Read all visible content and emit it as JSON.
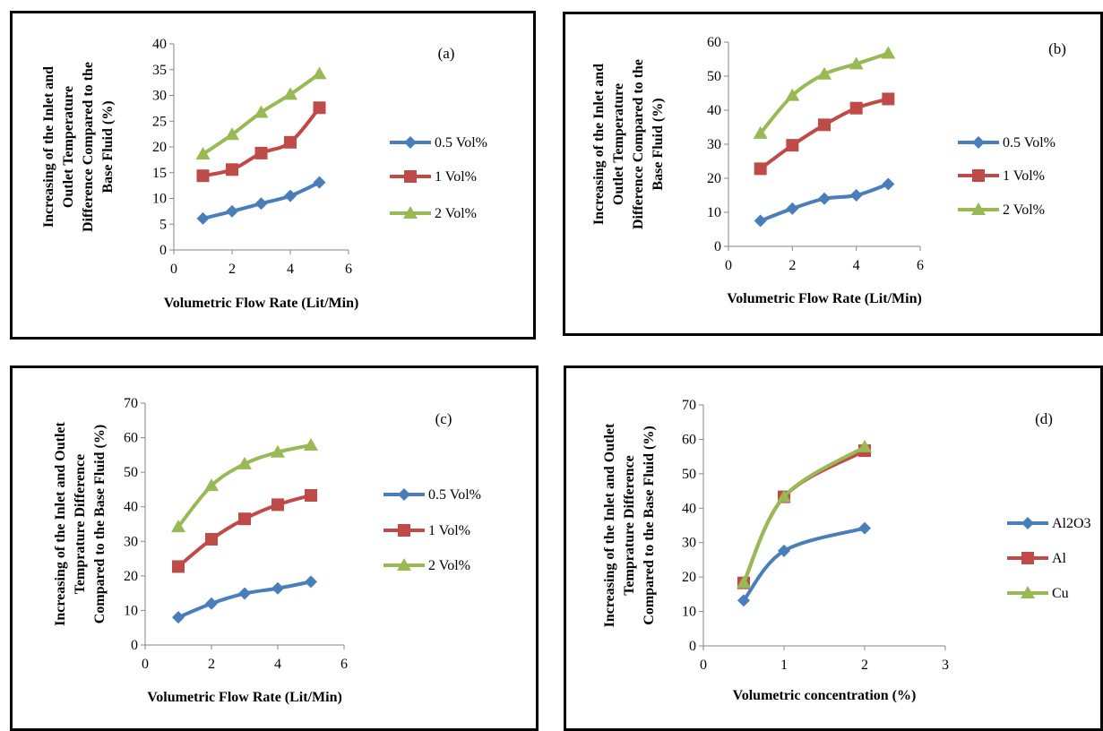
{
  "chart_data": [
    {
      "type": "line",
      "annotation": "(a)",
      "xlabel": "Volumetric Flow Rate (Lit/Min)",
      "ylabel": [
        "Increasing of the Inlet and",
        "Outlet Temperature",
        "Difference Compared to the",
        "Base Fluid (%)"
      ],
      "xlim": [
        0,
        6
      ],
      "xticks": [
        0,
        2,
        4,
        6
      ],
      "ylim": [
        0,
        40
      ],
      "yticks": [
        0,
        5,
        10,
        15,
        20,
        25,
        30,
        35,
        40
      ],
      "grid": false,
      "legend": "right",
      "series": [
        {
          "name": "0.5 Vol%",
          "color": "#4a7ebb",
          "marker": "diamond",
          "x": [
            1,
            2,
            3,
            4,
            5
          ],
          "y": [
            6.1,
            7.5,
            9.0,
            10.5,
            13.1
          ]
        },
        {
          "name": "1 Vol%",
          "color": "#be4b48",
          "marker": "square",
          "x": [
            1,
            2,
            3,
            4,
            5
          ],
          "y": [
            14.4,
            15.6,
            18.8,
            20.9,
            27.6
          ]
        },
        {
          "name": "2 Vol%",
          "color": "#98b954",
          "marker": "triangle",
          "x": [
            1,
            2,
            3,
            4,
            5
          ],
          "y": [
            18.6,
            22.4,
            26.7,
            30.2,
            34.2
          ]
        }
      ]
    },
    {
      "type": "line",
      "annotation": "(b)",
      "xlabel": "Volumetric Flow Rate (Lit/Min)",
      "ylabel": [
        "Increasing of the Inlet and",
        "Outlet Temperature",
        "Difference Compared to the",
        "Base Fluid (%)"
      ],
      "xlim": [
        0,
        6
      ],
      "xticks": [
        0,
        2,
        4,
        6
      ],
      "ylim": [
        0,
        60
      ],
      "yticks": [
        0,
        10,
        20,
        30,
        40,
        50,
        60
      ],
      "grid": false,
      "legend": "right",
      "series": [
        {
          "name": "0.5 Vol%",
          "color": "#4a7ebb",
          "marker": "diamond",
          "x": [
            1,
            2,
            3,
            4,
            5
          ],
          "y": [
            7.5,
            11.1,
            14.0,
            15.0,
            18.3
          ]
        },
        {
          "name": "1 Vol%",
          "color": "#be4b48",
          "marker": "square",
          "x": [
            1,
            2,
            3,
            4,
            5
          ],
          "y": [
            22.8,
            29.7,
            35.7,
            40.6,
            43.3
          ]
        },
        {
          "name": "2 Vol%",
          "color": "#98b954",
          "marker": "triangle",
          "x": [
            1,
            2,
            3,
            4,
            5
          ],
          "y": [
            33.2,
            44.3,
            50.6,
            53.6,
            56.7
          ]
        }
      ]
    },
    {
      "type": "line",
      "annotation": "(c)",
      "xlabel": "Volumetric Flow Rate (Lit/Min)",
      "ylabel": [
        "Increasing of the Inlet and Outlet",
        "Temprature Difference",
        "Compared to the Base Fluid (%)"
      ],
      "xlim": [
        0,
        6
      ],
      "xticks": [
        0,
        2,
        4,
        6
      ],
      "ylim": [
        0,
        70
      ],
      "yticks": [
        0,
        10,
        20,
        30,
        40,
        50,
        60,
        70
      ],
      "grid": false,
      "legend": "right",
      "series": [
        {
          "name": "0.5 Vol%",
          "color": "#4a7ebb",
          "marker": "diamond",
          "x": [
            1,
            2,
            3,
            4,
            5
          ],
          "y": [
            8.0,
            12.0,
            14.9,
            16.4,
            18.3
          ]
        },
        {
          "name": "1 Vol%",
          "color": "#be4b48",
          "marker": "square",
          "x": [
            1,
            2,
            3,
            4,
            5
          ],
          "y": [
            22.7,
            30.6,
            36.5,
            40.6,
            43.3
          ]
        },
        {
          "name": "2 Vol%",
          "color": "#98b954",
          "marker": "triangle",
          "x": [
            1,
            2,
            3,
            4,
            5
          ],
          "y": [
            34.2,
            46.1,
            52.4,
            55.8,
            57.8
          ]
        }
      ]
    },
    {
      "type": "line",
      "annotation": "(d)",
      "xlabel": "Volumetric concentration (%)",
      "ylabel": [
        "Increasing of the Inlet and Outlet",
        "Temprature Difference",
        "Compared to the Base Fluid (%)"
      ],
      "xlim": [
        0,
        3
      ],
      "xticks": [
        0,
        1,
        2,
        3
      ],
      "ylim": [
        0,
        70
      ],
      "yticks": [
        0,
        10,
        20,
        30,
        40,
        50,
        60,
        70
      ],
      "grid": false,
      "legend": "right",
      "series": [
        {
          "name": "Al2O3",
          "color": "#4a7ebb",
          "marker": "diamond",
          "x": [
            0.5,
            1,
            2
          ],
          "y": [
            13.2,
            27.6,
            34.2
          ]
        },
        {
          "name": "Al",
          "color": "#be4b48",
          "marker": "square",
          "x": [
            0.5,
            1,
            2
          ],
          "y": [
            18.3,
            43.3,
            56.7
          ]
        },
        {
          "name": "Cu",
          "color": "#98b954",
          "marker": "triangle",
          "x": [
            0.5,
            1,
            2
          ],
          "y": [
            18.3,
            43.3,
            57.8
          ]
        }
      ]
    }
  ]
}
